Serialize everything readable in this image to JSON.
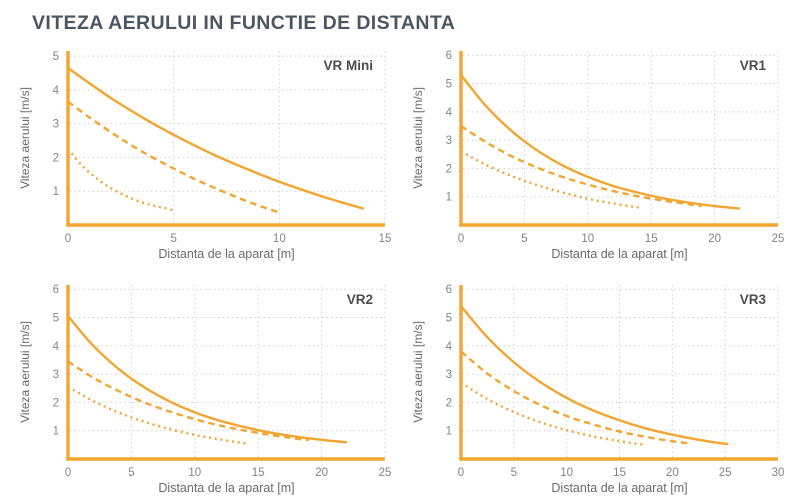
{
  "page": {
    "title": "VITEZA AERULUI IN FUNCTIE DE DISTANTA"
  },
  "colors": {
    "accent": "#F2A530",
    "grid": "#CFCFCF",
    "tick_text": "#848484",
    "axis_title_text": "#6B6B6B",
    "panel_label_text": "#4D4D4D",
    "title_text": "#4C5661",
    "background": "#FFFFFF"
  },
  "chart_data": [
    {
      "type": "line",
      "title": "VR Mini",
      "xlabel": "Distanta de la aparat [m]",
      "ylabel": "Viteza aerului [m/s]",
      "xlim": [
        0,
        15
      ],
      "ylim": [
        0,
        5.15
      ],
      "xticks": [
        0,
        5,
        10,
        15
      ],
      "yticks": [
        1,
        2,
        3,
        4,
        5
      ],
      "grid": true,
      "legend": "none",
      "series": [
        {
          "style": "solid",
          "points": [
            [
              0,
              4.65
            ],
            [
              1,
              4.2
            ],
            [
              2,
              3.77
            ],
            [
              3,
              3.38
            ],
            [
              4,
              3.01
            ],
            [
              5,
              2.67
            ],
            [
              6,
              2.35
            ],
            [
              7,
              2.05
            ],
            [
              8,
              1.78
            ],
            [
              9,
              1.52
            ],
            [
              10,
              1.28
            ],
            [
              11,
              1.06
            ],
            [
              12,
              0.85
            ],
            [
              13,
              0.66
            ],
            [
              14,
              0.48
            ]
          ]
        },
        {
          "style": "dashed",
          "points": [
            [
              0,
              3.65
            ],
            [
              1,
              3.19
            ],
            [
              2,
              2.76
            ],
            [
              3,
              2.36
            ],
            [
              4,
              2.0
            ],
            [
              5,
              1.67
            ],
            [
              6,
              1.36
            ],
            [
              7,
              1.08
            ],
            [
              8,
              0.82
            ],
            [
              9,
              0.58
            ],
            [
              10,
              0.37
            ]
          ]
        },
        {
          "style": "dotted",
          "points": [
            [
              0,
              2.25
            ],
            [
              0.5,
              1.87
            ],
            [
              1,
              1.56
            ],
            [
              1.5,
              1.31
            ],
            [
              2,
              1.1
            ],
            [
              2.5,
              0.93
            ],
            [
              3,
              0.79
            ],
            [
              3.5,
              0.67
            ],
            [
              4,
              0.58
            ],
            [
              4.5,
              0.51
            ],
            [
              5,
              0.44
            ]
          ]
        }
      ]
    },
    {
      "type": "line",
      "title": "VR1",
      "xlabel": "Distanta de la aparat [m]",
      "ylabel": "Viteza aerului [m/s]",
      "xlim": [
        0,
        25
      ],
      "ylim": [
        0,
        6.15
      ],
      "xticks": [
        0,
        5,
        10,
        15,
        20,
        25
      ],
      "yticks": [
        1,
        2,
        3,
        4,
        5,
        6
      ],
      "grid": true,
      "legend": "none",
      "series": [
        {
          "style": "solid",
          "points": [
            [
              0,
              5.3
            ],
            [
              2,
              4.19
            ],
            [
              4,
              3.32
            ],
            [
              6,
              2.64
            ],
            [
              8,
              2.11
            ],
            [
              10,
              1.7
            ],
            [
              12,
              1.38
            ],
            [
              14,
              1.14
            ],
            [
              16,
              0.94
            ],
            [
              18,
              0.79
            ],
            [
              20,
              0.67
            ],
            [
              22,
              0.58
            ]
          ]
        },
        {
          "style": "dashed",
          "points": [
            [
              0,
              3.5
            ],
            [
              2,
              2.92
            ],
            [
              4,
              2.43
            ],
            [
              6,
              2.03
            ],
            [
              8,
              1.7
            ],
            [
              10,
              1.43
            ],
            [
              12,
              1.2
            ],
            [
              14,
              1.01
            ],
            [
              16,
              0.86
            ],
            [
              18,
              0.73
            ],
            [
              19,
              0.67
            ]
          ]
        },
        {
          "style": "dotted",
          "points": [
            [
              0,
              2.6
            ],
            [
              2,
              2.12
            ],
            [
              4,
              1.73
            ],
            [
              6,
              1.41
            ],
            [
              8,
              1.15
            ],
            [
              10,
              0.93
            ],
            [
              12,
              0.76
            ],
            [
              14,
              0.62
            ]
          ]
        }
      ]
    },
    {
      "type": "line",
      "title": "VR2",
      "xlabel": "Distanta de la aparat [m]",
      "ylabel": "Viteza aerului [m/s]",
      "xlim": [
        0,
        25
      ],
      "ylim": [
        0,
        6.15
      ],
      "xticks": [
        0,
        5,
        10,
        15,
        20,
        25
      ],
      "yticks": [
        1,
        2,
        3,
        4,
        5,
        6
      ],
      "grid": true,
      "legend": "none",
      "series": [
        {
          "style": "solid",
          "points": [
            [
              0,
              5.05
            ],
            [
              2,
              4.0
            ],
            [
              4,
              3.18
            ],
            [
              6,
              2.54
            ],
            [
              8,
              2.04
            ],
            [
              10,
              1.65
            ],
            [
              12,
              1.35
            ],
            [
              14,
              1.12
            ],
            [
              16,
              0.93
            ],
            [
              18,
              0.79
            ],
            [
              20,
              0.68
            ],
            [
              22,
              0.59
            ]
          ]
        },
        {
          "style": "dashed",
          "points": [
            [
              0,
              3.45
            ],
            [
              2,
              2.87
            ],
            [
              4,
              2.4
            ],
            [
              6,
              2.0
            ],
            [
              8,
              1.68
            ],
            [
              10,
              1.41
            ],
            [
              12,
              1.18
            ],
            [
              14,
              1.0
            ],
            [
              16,
              0.85
            ],
            [
              18,
              0.72
            ],
            [
              19,
              0.67
            ]
          ]
        },
        {
          "style": "dotted",
          "points": [
            [
              0,
              2.55
            ],
            [
              2,
              2.05
            ],
            [
              4,
              1.64
            ],
            [
              6,
              1.32
            ],
            [
              8,
              1.06
            ],
            [
              10,
              0.85
            ],
            [
              12,
              0.69
            ],
            [
              14,
              0.55
            ]
          ]
        }
      ]
    },
    {
      "type": "line",
      "title": "VR3",
      "xlabel": "Distanta de la aparat [m]",
      "ylabel": "Viteza aerului [m/s]",
      "xlim": [
        0,
        30
      ],
      "ylim": [
        0,
        6.15
      ],
      "xticks": [
        0,
        5,
        10,
        15,
        20,
        25,
        30
      ],
      "yticks": [
        1,
        2,
        3,
        4,
        5,
        6
      ],
      "grid": true,
      "legend": "none",
      "series": [
        {
          "style": "solid",
          "points": [
            [
              0,
              5.4
            ],
            [
              2.5,
              4.3
            ],
            [
              5,
              3.42
            ],
            [
              7.5,
              2.72
            ],
            [
              10,
              2.16
            ],
            [
              12.5,
              1.72
            ],
            [
              15,
              1.37
            ],
            [
              17.5,
              1.08
            ],
            [
              20,
              0.86
            ],
            [
              22.5,
              0.68
            ],
            [
              25.3,
              0.52
            ]
          ]
        },
        {
          "style": "dashed",
          "points": [
            [
              0,
              3.8
            ],
            [
              2.5,
              3.02
            ],
            [
              5,
              2.4
            ],
            [
              7.5,
              1.91
            ],
            [
              10,
              1.52
            ],
            [
              12.5,
              1.22
            ],
            [
              15,
              0.97
            ],
            [
              17.5,
              0.78
            ],
            [
              20,
              0.63
            ],
            [
              21.8,
              0.54
            ]
          ]
        },
        {
          "style": "dotted",
          "points": [
            [
              0,
              2.7
            ],
            [
              2.5,
              2.12
            ],
            [
              5,
              1.66
            ],
            [
              7.5,
              1.3
            ],
            [
              10,
              1.02
            ],
            [
              12.5,
              0.8
            ],
            [
              15,
              0.63
            ],
            [
              17.3,
              0.5
            ]
          ]
        }
      ]
    }
  ]
}
